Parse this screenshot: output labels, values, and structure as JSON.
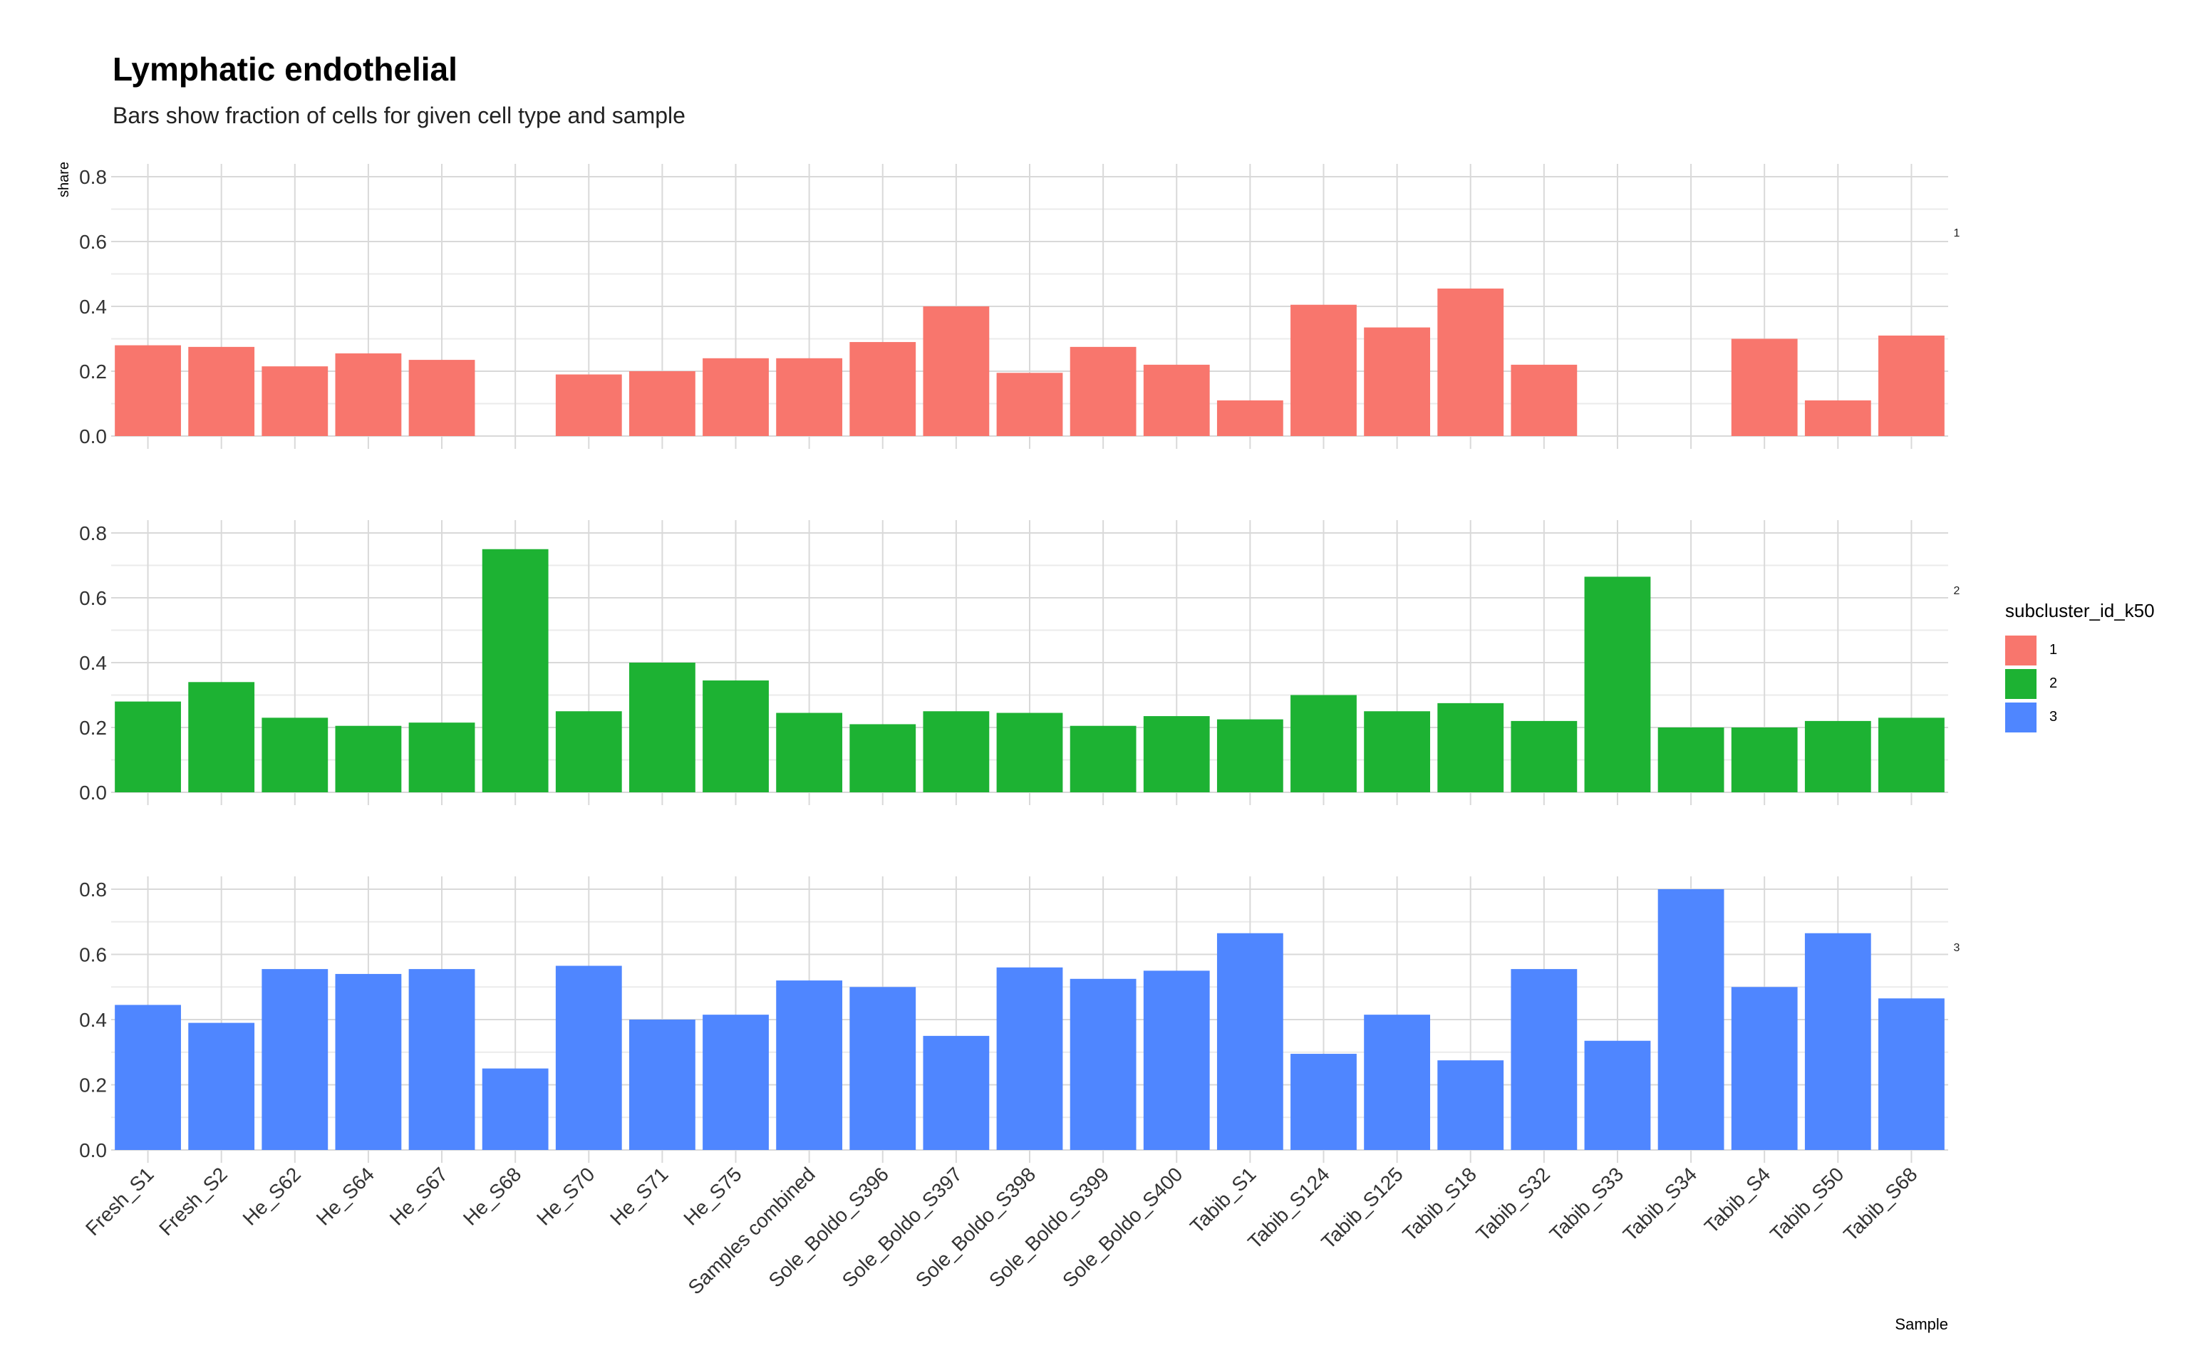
{
  "chart_data": {
    "type": "bar",
    "title": "Lymphatic endothelial",
    "subtitle": "Bars show fraction of cells for given cell type and sample",
    "xlabel": "Sample",
    "ylabel": "share",
    "ylim": [
      0,
      0.8
    ],
    "yticks": [
      "0.0",
      "0.2",
      "0.4",
      "0.6",
      "0.8"
    ],
    "categories": [
      "Fresh_S1",
      "Fresh_S2",
      "He_S62",
      "He_S64",
      "He_S67",
      "He_S68",
      "He_S70",
      "He_S71",
      "He_S75",
      "Samples combined",
      "Sole_Boldo_S396",
      "Sole_Boldo_S397",
      "Sole_Boldo_S398",
      "Sole_Boldo_S399",
      "Sole_Boldo_S400",
      "Tabib_S1",
      "Tabib_S124",
      "Tabib_S125",
      "Tabib_S18",
      "Tabib_S32",
      "Tabib_S33",
      "Tabib_S34",
      "Tabib_S4",
      "Tabib_S50",
      "Tabib_S68"
    ],
    "legend_title": "subcluster_id_k50",
    "legend_position": "right",
    "grid": true,
    "series": [
      {
        "name": "1",
        "color": "#F8766D",
        "values": [
          0.28,
          0.275,
          0.215,
          0.255,
          0.235,
          null,
          0.19,
          0.2,
          0.24,
          0.24,
          0.29,
          0.4,
          0.195,
          0.275,
          0.22,
          0.11,
          0.405,
          0.335,
          0.455,
          0.22,
          null,
          null,
          0.3,
          0.11,
          0.31
        ]
      },
      {
        "name": "2",
        "color": "#1DB233",
        "values": [
          0.28,
          0.34,
          0.23,
          0.205,
          0.215,
          0.75,
          0.25,
          0.4,
          0.345,
          0.245,
          0.21,
          0.25,
          0.245,
          0.205,
          0.235,
          0.225,
          0.3,
          0.25,
          0.275,
          0.22,
          0.665,
          0.2,
          0.2,
          0.22,
          0.23
        ]
      },
      {
        "name": "3",
        "color": "#4F86FF",
        "values": [
          0.445,
          0.39,
          0.555,
          0.54,
          0.555,
          0.25,
          0.565,
          0.4,
          0.415,
          0.52,
          0.5,
          0.35,
          0.56,
          0.525,
          0.55,
          0.665,
          0.295,
          0.415,
          0.275,
          0.555,
          0.335,
          0.8,
          0.5,
          0.665,
          0.465
        ]
      }
    ]
  }
}
